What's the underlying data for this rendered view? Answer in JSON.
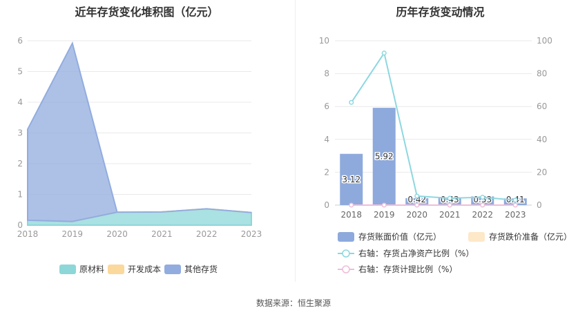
{
  "chart_data": [
    {
      "type": "area",
      "stacked": true,
      "title": "近年存货变化堆积图（亿元）",
      "x": [
        "2018",
        "2019",
        "2020",
        "2021",
        "2022",
        "2023"
      ],
      "ylim": [
        0,
        6
      ],
      "yticks": [
        "0",
        "1",
        "2",
        "3",
        "4",
        "5",
        "6"
      ],
      "grid": true,
      "legend_position": "bottom",
      "series": [
        {
          "name": "原材料",
          "color": "#8dd7d8",
          "values": [
            0.16,
            0.12,
            0.42,
            0.43,
            0.53,
            0.41
          ]
        },
        {
          "name": "开发成本",
          "color": "#fbd89c",
          "values": [
            0,
            0,
            0,
            0,
            0,
            0
          ]
        },
        {
          "name": "其他存货",
          "color": "#92acdf",
          "values": [
            2.96,
            5.8,
            0,
            0,
            0,
            0
          ]
        }
      ]
    },
    {
      "type": "bar",
      "title": "历年存货变动情况",
      "x": [
        "2018",
        "2019",
        "2020",
        "2021",
        "2022",
        "2023"
      ],
      "ylim": [
        0,
        10
      ],
      "yticks": [
        "0",
        "2",
        "4",
        "6",
        "8",
        "10"
      ],
      "y2lim": [
        0,
        100
      ],
      "y2ticks": [
        "0",
        "20",
        "40",
        "60",
        "80",
        "100"
      ],
      "grid": true,
      "legend_position": "bottom",
      "series": [
        {
          "name": "存货账面价值（亿元）",
          "kind": "bar",
          "axis": "left",
          "color": "#8eaadc",
          "values": [
            3.12,
            5.92,
            0.42,
            0.43,
            0.53,
            0.41
          ],
          "labels": [
            "3.12",
            "5.92",
            "0.42",
            "0.43",
            "0.53",
            "0.41"
          ]
        },
        {
          "name": "存货跌价准备（亿元）",
          "kind": "bar",
          "axis": "left",
          "color": "#fde8c8",
          "values": [
            0,
            0,
            0,
            0,
            0,
            0
          ]
        },
        {
          "name": "右轴：存货占净资产比例（%）",
          "kind": "line",
          "axis": "right",
          "color": "#8dd7e0",
          "values": [
            62.5,
            92.5,
            5.5,
            4.2,
            4.8,
            3.0
          ]
        },
        {
          "name": "右轴：存货计提比例（%）",
          "kind": "line",
          "axis": "right",
          "color": "#f0bcd8",
          "values": [
            0,
            0,
            0,
            0,
            0,
            0
          ]
        }
      ]
    }
  ],
  "footer": {
    "label": "数据来源：",
    "value": "恒生聚源"
  }
}
